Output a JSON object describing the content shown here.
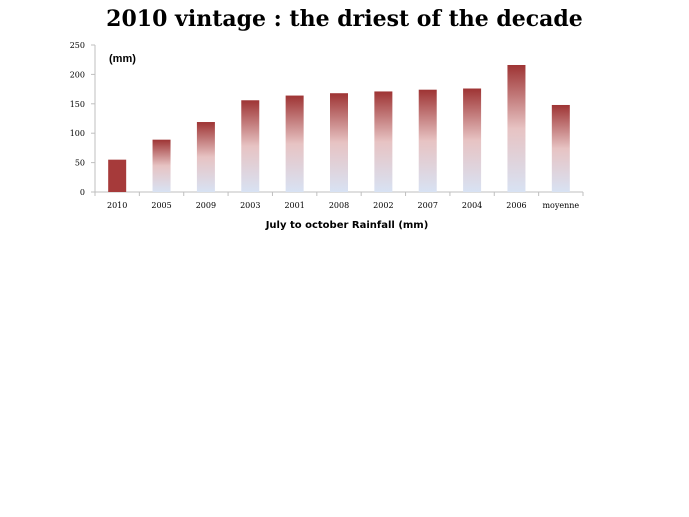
{
  "chart_data": {
    "type": "bar",
    "title": "2010 vintage : the driest of the decade",
    "xlabel": "July to october Rainfall (mm)",
    "ylabel": "(mm)",
    "ylim": [
      0,
      250
    ],
    "yticks": [
      0,
      50,
      100,
      150,
      200,
      250
    ],
    "categories": [
      "2010",
      "2005",
      "2009",
      "2003",
      "2001",
      "2008",
      "2002",
      "2007",
      "2004",
      "2006",
      "moyenne"
    ],
    "values": [
      55,
      89,
      119,
      156,
      164,
      168,
      171,
      174,
      176,
      216,
      148
    ],
    "grid": false,
    "legend": "none",
    "colors": {
      "highlight": "#A63A3A",
      "top": "#9E3434",
      "bottom": "#D8E2F3"
    }
  }
}
